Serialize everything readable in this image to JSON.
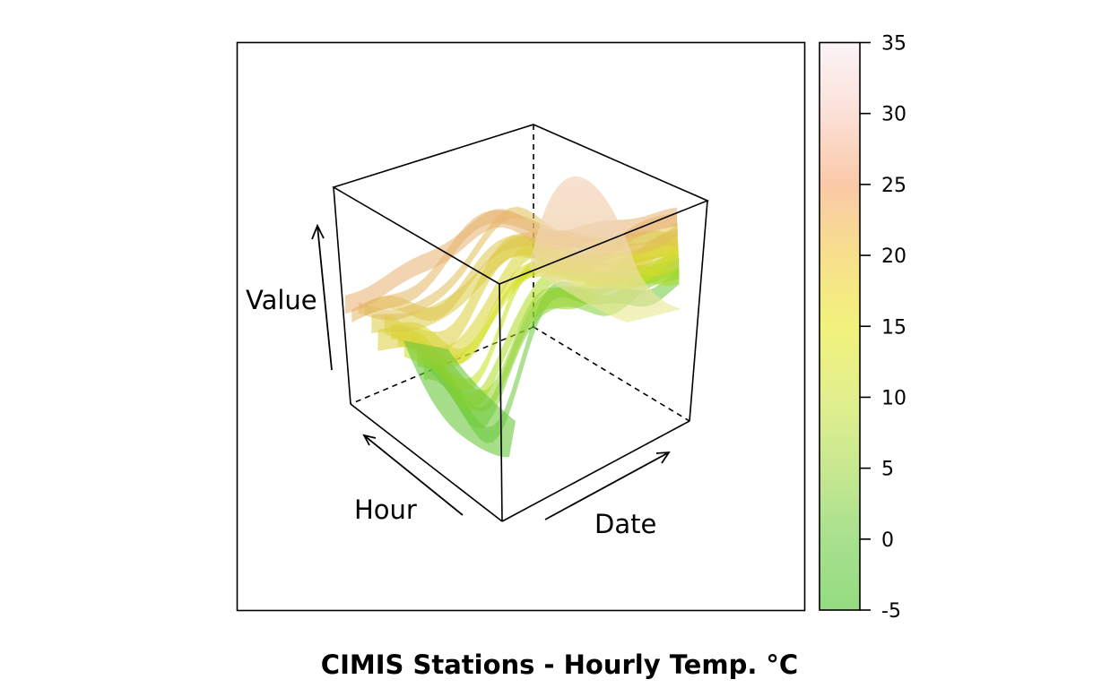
{
  "chart_data": {
    "type": "surface3d",
    "title": "CIMIS Stations - Hourly Temp. °C",
    "xlabel": "Date",
    "ylabel": "Hour",
    "zlabel": "Value",
    "colorbar": {
      "range": [
        -5,
        35
      ],
      "ticks": [
        -5,
        0,
        5,
        10,
        15,
        20,
        25,
        30,
        35
      ],
      "colors": [
        "#94dc80",
        "#a8e08e",
        "#c8e890",
        "#e2ef8e",
        "#f2f27c",
        "#f7df8c",
        "#fac9a8",
        "#fbe0d8",
        "#fbf4f6"
      ],
      "placement": "right"
    },
    "surface_colors": {
      "low": "#6ac83a",
      "mid": "#d2e41a",
      "high": "#e7b070",
      "peak": "#f0d0b0"
    },
    "frame_color": "#000000"
  }
}
